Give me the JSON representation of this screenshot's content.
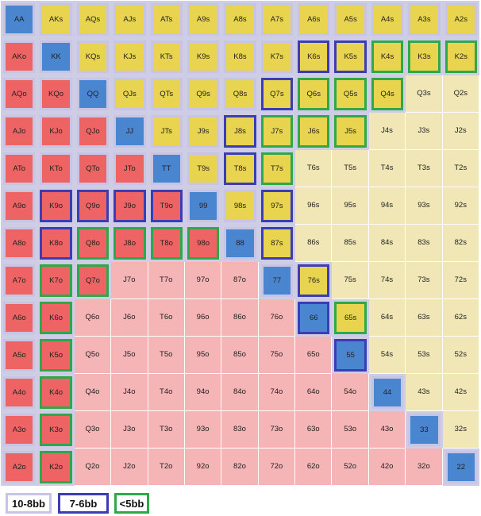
{
  "colors": {
    "grid_bg": "#cfcde6",
    "pair": "#4a86cf",
    "open_suited": "#e9d44f",
    "open_offsuit": "#ee6465",
    "fold_suited": "#f1e7b6",
    "fold_offsuit": "#f5b5b6",
    "border_10_8": "#c8c4e4",
    "border_7_6": "#3c3cb5",
    "border_lt5": "#2ea84a"
  },
  "grid": [
    [
      {
        "t": "AA",
        "k": "pair",
        "b": "10-8"
      },
      {
        "t": "AKs",
        "k": "os",
        "b": "10-8"
      },
      {
        "t": "AQs",
        "k": "os",
        "b": "10-8"
      },
      {
        "t": "AJs",
        "k": "os",
        "b": "10-8"
      },
      {
        "t": "ATs",
        "k": "os",
        "b": "10-8"
      },
      {
        "t": "A9s",
        "k": "os",
        "b": "10-8"
      },
      {
        "t": "A8s",
        "k": "os",
        "b": "10-8"
      },
      {
        "t": "A7s",
        "k": "os",
        "b": "10-8"
      },
      {
        "t": "A6s",
        "k": "os",
        "b": "10-8"
      },
      {
        "t": "A5s",
        "k": "os",
        "b": "10-8"
      },
      {
        "t": "A4s",
        "k": "os",
        "b": "10-8"
      },
      {
        "t": "A3s",
        "k": "os",
        "b": "10-8"
      },
      {
        "t": "A2s",
        "k": "os",
        "b": "10-8"
      }
    ],
    [
      {
        "t": "AKo",
        "k": "oo",
        "b": "10-8"
      },
      {
        "t": "KK",
        "k": "pair",
        "b": "10-8"
      },
      {
        "t": "KQs",
        "k": "os",
        "b": "10-8"
      },
      {
        "t": "KJs",
        "k": "os",
        "b": "10-8"
      },
      {
        "t": "KTs",
        "k": "os",
        "b": "10-8"
      },
      {
        "t": "K9s",
        "k": "os",
        "b": "10-8"
      },
      {
        "t": "K8s",
        "k": "os",
        "b": "10-8"
      },
      {
        "t": "K7s",
        "k": "os",
        "b": "10-8"
      },
      {
        "t": "K6s",
        "k": "os",
        "b": "7-6"
      },
      {
        "t": "K5s",
        "k": "os",
        "b": "7-6"
      },
      {
        "t": "K4s",
        "k": "os",
        "b": "lt5"
      },
      {
        "t": "K3s",
        "k": "os",
        "b": "lt5"
      },
      {
        "t": "K2s",
        "k": "os",
        "b": "lt5"
      }
    ],
    [
      {
        "t": "AQo",
        "k": "oo",
        "b": "10-8"
      },
      {
        "t": "KQo",
        "k": "oo",
        "b": "10-8"
      },
      {
        "t": "QQ",
        "k": "pair",
        "b": "10-8"
      },
      {
        "t": "QJs",
        "k": "os",
        "b": "10-8"
      },
      {
        "t": "QTs",
        "k": "os",
        "b": "10-8"
      },
      {
        "t": "Q9s",
        "k": "os",
        "b": "10-8"
      },
      {
        "t": "Q8s",
        "k": "os",
        "b": "10-8"
      },
      {
        "t": "Q7s",
        "k": "os",
        "b": "7-6"
      },
      {
        "t": "Q6s",
        "k": "os",
        "b": "lt5"
      },
      {
        "t": "Q5s",
        "k": "os",
        "b": "lt5"
      },
      {
        "t": "Q4s",
        "k": "os",
        "b": "lt5"
      },
      {
        "t": "Q3s",
        "k": "fs",
        "b": ""
      },
      {
        "t": "Q2s",
        "k": "fs",
        "b": ""
      }
    ],
    [
      {
        "t": "AJo",
        "k": "oo",
        "b": "10-8"
      },
      {
        "t": "KJo",
        "k": "oo",
        "b": "10-8"
      },
      {
        "t": "QJo",
        "k": "oo",
        "b": "10-8"
      },
      {
        "t": "JJ",
        "k": "pair",
        "b": "10-8"
      },
      {
        "t": "JTs",
        "k": "os",
        "b": "10-8"
      },
      {
        "t": "J9s",
        "k": "os",
        "b": "10-8"
      },
      {
        "t": "J8s",
        "k": "os",
        "b": "7-6"
      },
      {
        "t": "J7s",
        "k": "os",
        "b": "lt5"
      },
      {
        "t": "J6s",
        "k": "os",
        "b": "lt5"
      },
      {
        "t": "J5s",
        "k": "os",
        "b": "lt5"
      },
      {
        "t": "J4s",
        "k": "fs",
        "b": ""
      },
      {
        "t": "J3s",
        "k": "fs",
        "b": ""
      },
      {
        "t": "J2s",
        "k": "fs",
        "b": ""
      }
    ],
    [
      {
        "t": "ATo",
        "k": "oo",
        "b": "10-8"
      },
      {
        "t": "KTo",
        "k": "oo",
        "b": "10-8"
      },
      {
        "t": "QTo",
        "k": "oo",
        "b": "10-8"
      },
      {
        "t": "JTo",
        "k": "oo",
        "b": "10-8"
      },
      {
        "t": "TT",
        "k": "pair",
        "b": "10-8"
      },
      {
        "t": "T9s",
        "k": "os",
        "b": "10-8"
      },
      {
        "t": "T8s",
        "k": "os",
        "b": "7-6"
      },
      {
        "t": "T7s",
        "k": "os",
        "b": "lt5"
      },
      {
        "t": "T6s",
        "k": "fs",
        "b": ""
      },
      {
        "t": "T5s",
        "k": "fs",
        "b": ""
      },
      {
        "t": "T4s",
        "k": "fs",
        "b": ""
      },
      {
        "t": "T3s",
        "k": "fs",
        "b": ""
      },
      {
        "t": "T2s",
        "k": "fs",
        "b": ""
      }
    ],
    [
      {
        "t": "A9o",
        "k": "oo",
        "b": "10-8"
      },
      {
        "t": "K9o",
        "k": "oo",
        "b": "7-6"
      },
      {
        "t": "Q9o",
        "k": "oo",
        "b": "7-6"
      },
      {
        "t": "J9o",
        "k": "oo",
        "b": "7-6"
      },
      {
        "t": "T9o",
        "k": "oo",
        "b": "7-6"
      },
      {
        "t": "99",
        "k": "pair",
        "b": "10-8"
      },
      {
        "t": "98s",
        "k": "os",
        "b": "10-8"
      },
      {
        "t": "97s",
        "k": "os",
        "b": "7-6"
      },
      {
        "t": "96s",
        "k": "fs",
        "b": ""
      },
      {
        "t": "95s",
        "k": "fs",
        "b": ""
      },
      {
        "t": "94s",
        "k": "fs",
        "b": ""
      },
      {
        "t": "93s",
        "k": "fs",
        "b": ""
      },
      {
        "t": "92s",
        "k": "fs",
        "b": ""
      }
    ],
    [
      {
        "t": "A8o",
        "k": "oo",
        "b": "10-8"
      },
      {
        "t": "K8o",
        "k": "oo",
        "b": "7-6"
      },
      {
        "t": "Q8o",
        "k": "oo",
        "b": "lt5"
      },
      {
        "t": "J8o",
        "k": "oo",
        "b": "lt5"
      },
      {
        "t": "T8o",
        "k": "oo",
        "b": "lt5"
      },
      {
        "t": "98o",
        "k": "oo",
        "b": "lt5"
      },
      {
        "t": "88",
        "k": "pair",
        "b": "10-8"
      },
      {
        "t": "87s",
        "k": "os",
        "b": "7-6"
      },
      {
        "t": "86s",
        "k": "fs",
        "b": ""
      },
      {
        "t": "85s",
        "k": "fs",
        "b": ""
      },
      {
        "t": "84s",
        "k": "fs",
        "b": ""
      },
      {
        "t": "83s",
        "k": "fs",
        "b": ""
      },
      {
        "t": "82s",
        "k": "fs",
        "b": ""
      }
    ],
    [
      {
        "t": "A7o",
        "k": "oo",
        "b": "10-8"
      },
      {
        "t": "K7o",
        "k": "oo",
        "b": "lt5"
      },
      {
        "t": "Q7o",
        "k": "oo",
        "b": "lt5"
      },
      {
        "t": "J7o",
        "k": "fo",
        "b": ""
      },
      {
        "t": "T7o",
        "k": "fo",
        "b": ""
      },
      {
        "t": "97o",
        "k": "fo",
        "b": ""
      },
      {
        "t": "87o",
        "k": "fo",
        "b": ""
      },
      {
        "t": "77",
        "k": "pair",
        "b": "10-8"
      },
      {
        "t": "76s",
        "k": "os",
        "b": "7-6"
      },
      {
        "t": "75s",
        "k": "fs",
        "b": ""
      },
      {
        "t": "74s",
        "k": "fs",
        "b": ""
      },
      {
        "t": "73s",
        "k": "fs",
        "b": ""
      },
      {
        "t": "72s",
        "k": "fs",
        "b": ""
      }
    ],
    [
      {
        "t": "A6o",
        "k": "oo",
        "b": "10-8"
      },
      {
        "t": "K6o",
        "k": "oo",
        "b": "lt5"
      },
      {
        "t": "Q6o",
        "k": "fo",
        "b": ""
      },
      {
        "t": "J6o",
        "k": "fo",
        "b": ""
      },
      {
        "t": "T6o",
        "k": "fo",
        "b": ""
      },
      {
        "t": "96o",
        "k": "fo",
        "b": ""
      },
      {
        "t": "86o",
        "k": "fo",
        "b": ""
      },
      {
        "t": "76o",
        "k": "fo",
        "b": ""
      },
      {
        "t": "66",
        "k": "pair",
        "b": "7-6"
      },
      {
        "t": "65s",
        "k": "os",
        "b": "lt5"
      },
      {
        "t": "64s",
        "k": "fs",
        "b": ""
      },
      {
        "t": "63s",
        "k": "fs",
        "b": ""
      },
      {
        "t": "62s",
        "k": "fs",
        "b": ""
      }
    ],
    [
      {
        "t": "A5o",
        "k": "oo",
        "b": "10-8"
      },
      {
        "t": "K5o",
        "k": "oo",
        "b": "lt5"
      },
      {
        "t": "Q5o",
        "k": "fo",
        "b": ""
      },
      {
        "t": "J5o",
        "k": "fo",
        "b": ""
      },
      {
        "t": "T5o",
        "k": "fo",
        "b": ""
      },
      {
        "t": "95o",
        "k": "fo",
        "b": ""
      },
      {
        "t": "85o",
        "k": "fo",
        "b": ""
      },
      {
        "t": "75o",
        "k": "fo",
        "b": ""
      },
      {
        "t": "65o",
        "k": "fo",
        "b": ""
      },
      {
        "t": "55",
        "k": "pair",
        "b": "7-6"
      },
      {
        "t": "54s",
        "k": "fs",
        "b": ""
      },
      {
        "t": "53s",
        "k": "fs",
        "b": ""
      },
      {
        "t": "52s",
        "k": "fs",
        "b": ""
      }
    ],
    [
      {
        "t": "A4o",
        "k": "oo",
        "b": "10-8"
      },
      {
        "t": "K4o",
        "k": "oo",
        "b": "lt5"
      },
      {
        "t": "Q4o",
        "k": "fo",
        "b": ""
      },
      {
        "t": "J4o",
        "k": "fo",
        "b": ""
      },
      {
        "t": "T4o",
        "k": "fo",
        "b": ""
      },
      {
        "t": "94o",
        "k": "fo",
        "b": ""
      },
      {
        "t": "84o",
        "k": "fo",
        "b": ""
      },
      {
        "t": "74o",
        "k": "fo",
        "b": ""
      },
      {
        "t": "64o",
        "k": "fo",
        "b": ""
      },
      {
        "t": "54o",
        "k": "fo",
        "b": ""
      },
      {
        "t": "44",
        "k": "pair",
        "b": "10-8"
      },
      {
        "t": "43s",
        "k": "fs",
        "b": ""
      },
      {
        "t": "42s",
        "k": "fs",
        "b": ""
      }
    ],
    [
      {
        "t": "A3o",
        "k": "oo",
        "b": "10-8"
      },
      {
        "t": "K3o",
        "k": "oo",
        "b": "lt5"
      },
      {
        "t": "Q3o",
        "k": "fo",
        "b": ""
      },
      {
        "t": "J3o",
        "k": "fo",
        "b": ""
      },
      {
        "t": "T3o",
        "k": "fo",
        "b": ""
      },
      {
        "t": "93o",
        "k": "fo",
        "b": ""
      },
      {
        "t": "83o",
        "k": "fo",
        "b": ""
      },
      {
        "t": "73o",
        "k": "fo",
        "b": ""
      },
      {
        "t": "63o",
        "k": "fo",
        "b": ""
      },
      {
        "t": "53o",
        "k": "fo",
        "b": ""
      },
      {
        "t": "43o",
        "k": "fo",
        "b": ""
      },
      {
        "t": "33",
        "k": "pair",
        "b": "10-8"
      },
      {
        "t": "32s",
        "k": "fs",
        "b": ""
      }
    ],
    [
      {
        "t": "A2o",
        "k": "oo",
        "b": "10-8"
      },
      {
        "t": "K2o",
        "k": "oo",
        "b": "lt5"
      },
      {
        "t": "Q2o",
        "k": "fo",
        "b": ""
      },
      {
        "t": "J2o",
        "k": "fo",
        "b": ""
      },
      {
        "t": "T2o",
        "k": "fo",
        "b": ""
      },
      {
        "t": "92o",
        "k": "fo",
        "b": ""
      },
      {
        "t": "82o",
        "k": "fo",
        "b": ""
      },
      {
        "t": "72o",
        "k": "fo",
        "b": ""
      },
      {
        "t": "62o",
        "k": "fo",
        "b": ""
      },
      {
        "t": "52o",
        "k": "fo",
        "b": ""
      },
      {
        "t": "42o",
        "k": "fo",
        "b": ""
      },
      {
        "t": "32o",
        "k": "fo",
        "b": ""
      },
      {
        "t": "22",
        "k": "pair",
        "b": "10-8"
      }
    ]
  ],
  "legend": [
    {
      "label": "10-8bb",
      "b": "10-8"
    },
    {
      "label": "7-6bb",
      "b": "7-6"
    },
    {
      "label": "<5bb",
      "b": "lt5"
    }
  ]
}
